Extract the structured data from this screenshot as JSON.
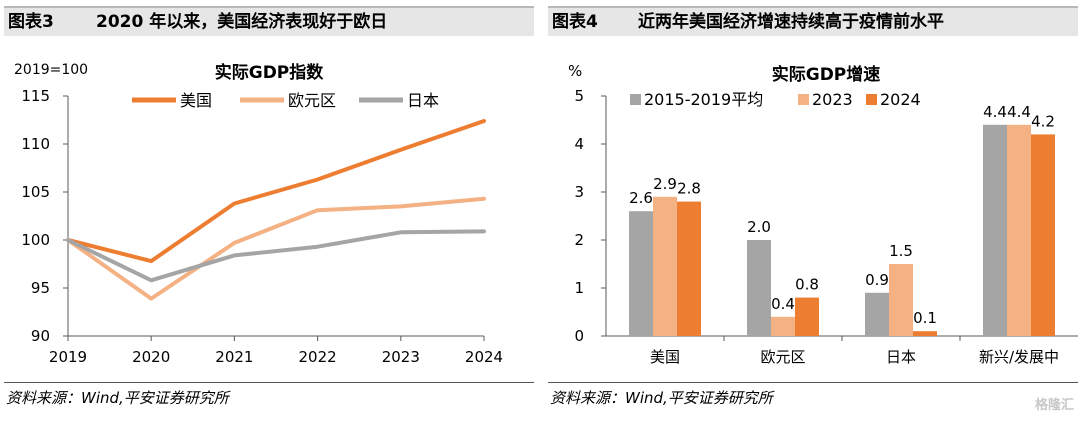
{
  "left": {
    "figure_no": "图表3",
    "figure_title": "2020 年以来，美国经济表现好于欧日",
    "source": "资料来源：Wind,平安证券研究所"
  },
  "right": {
    "figure_no": "图表4",
    "figure_title": "近两年美国经济增速持续高于疫情前水平",
    "source": "资料来源：Wind,平安证券研究所"
  },
  "watermark": "格隆汇",
  "colors": {
    "us": "#ed7d31",
    "eu": "#f4b183",
    "jp": "#a5a5a5"
  },
  "chart_data": [
    {
      "type": "line",
      "title": "实际GDP指数",
      "unit_label": "2019=100",
      "x": [
        "2019",
        "2020",
        "2021",
        "2022",
        "2023",
        "2024"
      ],
      "ylim": [
        90,
        115
      ],
      "yticks": [
        90,
        95,
        100,
        105,
        110,
        115
      ],
      "grid": false,
      "legend": "top",
      "series": [
        {
          "name": "美国",
          "color": "#ed7d31",
          "values": [
            100,
            97.8,
            103.8,
            106.3,
            109.4,
            112.4
          ]
        },
        {
          "name": "欧元区",
          "color": "#f4b183",
          "values": [
            100,
            93.9,
            99.7,
            103.1,
            103.5,
            104.3
          ]
        },
        {
          "name": "日本",
          "color": "#a5a5a5",
          "values": [
            100,
            95.8,
            98.4,
            99.3,
            100.8,
            100.9
          ]
        }
      ]
    },
    {
      "type": "bar",
      "title": "实际GDP增速",
      "unit_label": "%",
      "categories": [
        "美国",
        "欧元区",
        "日本",
        "新兴/发展中"
      ],
      "ylim": [
        0,
        5
      ],
      "yticks": [
        0,
        1,
        2,
        3,
        4,
        5
      ],
      "grid": false,
      "legend": "top",
      "series": [
        {
          "name": "2015-2019平均",
          "color": "#a5a5a5",
          "values": [
            2.6,
            2.0,
            0.9,
            4.4
          ],
          "labels": [
            "2.6",
            "2.0",
            "0.9",
            "4.4"
          ]
        },
        {
          "name": "2023",
          "color": "#f4b183",
          "values": [
            2.9,
            0.4,
            1.5,
            4.4
          ],
          "labels": [
            "2.9",
            "0.4",
            "1.5",
            "4.4"
          ]
        },
        {
          "name": "2024",
          "color": "#ed7d31",
          "values": [
            2.8,
            0.8,
            0.1,
            4.2
          ],
          "labels": [
            "2.8",
            "0.8",
            "0.1",
            "4.2"
          ]
        }
      ]
    }
  ]
}
